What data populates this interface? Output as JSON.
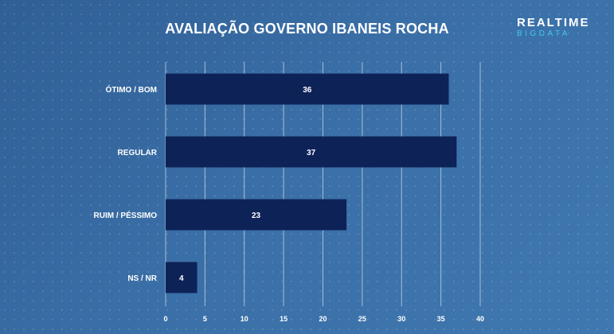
{
  "header": {
    "title": "AVALIAÇÃO GOVERNO IBANEIS ROCHA"
  },
  "logo": {
    "line1": "REALTIME",
    "line2": "BIGDATA"
  },
  "colors": {
    "bar": "#0d2257",
    "gridline": "#ffffff",
    "text": "#ffffff",
    "logo_accent": "#3fc7e6"
  },
  "chart_data": {
    "type": "bar",
    "orientation": "horizontal",
    "title": "AVALIAÇÃO GOVERNO IBANEIS ROCHA",
    "categories": [
      "ÓTIMO / BOM",
      "REGULAR",
      "RUIM / PÉSSIMO",
      "NS / NR"
    ],
    "values": [
      36,
      37,
      23,
      4
    ],
    "xlim": [
      0,
      40
    ],
    "xticks": [
      0,
      5,
      10,
      15,
      20,
      25,
      30,
      35,
      40
    ],
    "grid": true,
    "legend": false,
    "data_labels": true
  }
}
